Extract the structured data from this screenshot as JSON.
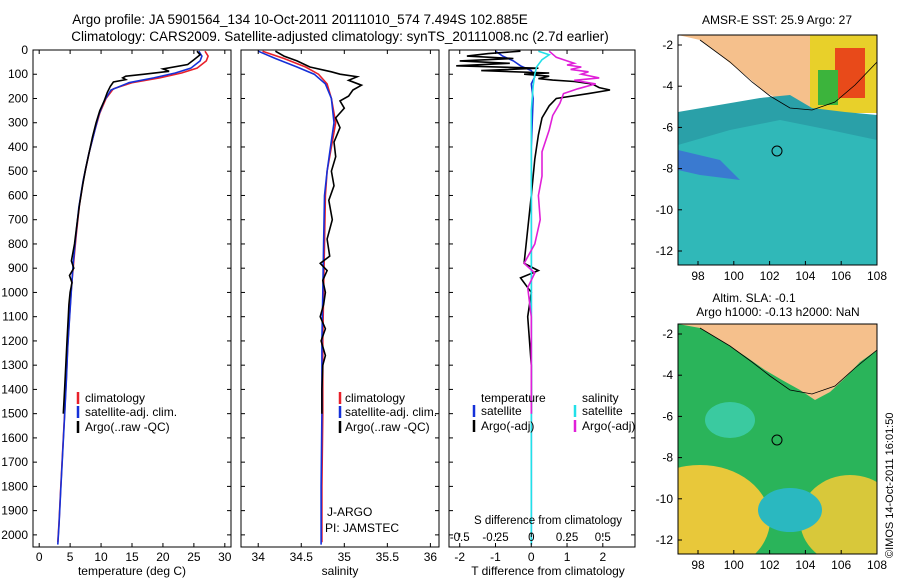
{
  "title_line1": "Argo profile: JA 5901564_134 10-Oct-2011 20111010_574 7.494S 102.885E",
  "title_line2": "Climatology: CARS2009. Satellite-adjusted climatology: synTS_20111008.nc (2.7d earlier)",
  "depth_ticks": [
    0,
    100,
    200,
    300,
    400,
    500,
    600,
    700,
    800,
    900,
    1000,
    1100,
    1200,
    1300,
    1400,
    1500,
    1600,
    1700,
    1800,
    1900,
    2000
  ],
  "colors": {
    "climatology": "#e8202a",
    "satellite": "#1530d8",
    "argo": "#000000",
    "cyan": "#22e0e8",
    "magenta": "#e020d8",
    "land": "#f5c08c",
    "ocean": "#2e8a5a"
  },
  "chart_data": [
    {
      "type": "line",
      "id": "temperature",
      "xlabel": "temperature (deg C)",
      "xlim": [
        -1,
        31
      ],
      "ylim": [
        2050,
        0
      ],
      "xticks": [
        0,
        5,
        10,
        15,
        20,
        25,
        30
      ],
      "xticklabels": [
        "0",
        "5",
        "10",
        "15",
        "20",
        "25",
        "30"
      ],
      "legend": [
        "climatology",
        "satellite-adj. clim.",
        "Argo(..raw -QC)"
      ],
      "series": [
        {
          "name": "climatology",
          "color": "red",
          "points": [
            [
              26.8,
              5
            ],
            [
              27.3,
              25
            ],
            [
              27.0,
              45
            ],
            [
              25.5,
              75
            ],
            [
              23,
              95
            ],
            [
              19.5,
              115
            ],
            [
              15,
              135
            ],
            [
              12,
              160
            ],
            [
              10.8,
              200
            ],
            [
              9.8,
              260
            ],
            [
              9,
              330
            ],
            [
              8.1,
              420
            ],
            [
              7.2,
              530
            ],
            [
              6.5,
              640
            ],
            [
              6,
              760
            ],
            [
              5.6,
              870
            ],
            [
              5.2,
              980
            ],
            [
              4.9,
              1100
            ],
            [
              4.6,
              1220
            ],
            [
              4.4,
              1350
            ],
            [
              4.1,
              1500
            ],
            [
              3.8,
              1650
            ],
            [
              3.5,
              1800
            ],
            [
              3.2,
              1950
            ],
            [
              3,
              2030
            ]
          ]
        },
        {
          "name": "satellite-adj. clim.",
          "color": "blue",
          "points": [
            [
              25.8,
              5
            ],
            [
              26.3,
              25
            ],
            [
              26.0,
              45
            ],
            [
              24.5,
              75
            ],
            [
              22,
              95
            ],
            [
              18.5,
              115
            ],
            [
              14.5,
              135
            ],
            [
              11.6,
              165
            ],
            [
              10.5,
              210
            ],
            [
              9.6,
              270
            ],
            [
              8.9,
              340
            ],
            [
              8.0,
              430
            ],
            [
              7.1,
              540
            ],
            [
              6.4,
              650
            ],
            [
              5.9,
              770
            ],
            [
              5.5,
              880
            ],
            [
              5.2,
              990
            ],
            [
              4.9,
              1110
            ],
            [
              4.6,
              1230
            ],
            [
              4.4,
              1360
            ],
            [
              4.1,
              1510
            ],
            [
              3.8,
              1660
            ],
            [
              3.5,
              1810
            ],
            [
              3.2,
              1960
            ],
            [
              3,
              2040
            ]
          ]
        },
        {
          "name": "Argo(..raw -QC)",
          "color": "black",
          "points": [
            [
              25.5,
              5
            ],
            [
              26,
              20
            ],
            [
              25,
              40
            ],
            [
              24,
              60
            ],
            [
              20,
              78
            ],
            [
              21,
              88
            ],
            [
              17,
              100
            ],
            [
              14,
              108
            ],
            [
              13.5,
              115
            ],
            [
              14,
              122
            ],
            [
              12,
              132
            ],
            [
              11.5,
              150
            ],
            [
              11,
              175
            ],
            [
              10.5,
              210
            ],
            [
              9.8,
              250
            ],
            [
              9.2,
              300
            ],
            [
              8.6,
              360
            ],
            [
              8.1,
              420
            ],
            [
              7.5,
              490
            ],
            [
              7,
              560
            ],
            [
              6.5,
              640
            ],
            [
              6.1,
              720
            ],
            [
              5.7,
              800
            ],
            [
              5.2,
              870
            ],
            [
              5.6,
              900
            ],
            [
              4.9,
              930
            ],
            [
              5.3,
              960
            ],
            [
              5.0,
              1000
            ],
            [
              4.8,
              1050
            ],
            [
              4.7,
              1100
            ],
            [
              4.5,
              1200
            ],
            [
              4.3,
              1300
            ],
            [
              4.1,
              1400
            ],
            [
              3.9,
              1500
            ]
          ]
        }
      ]
    },
    {
      "type": "line",
      "id": "salinity",
      "xlabel": "salinity",
      "xlim": [
        33.8,
        36.1
      ],
      "ylim": [
        2050,
        0
      ],
      "xticks": [
        34,
        34.5,
        35,
        35.5,
        36
      ],
      "xticklabels": [
        "34",
        "34.5",
        "35",
        "35.5",
        "36"
      ],
      "legend": [
        "climatology",
        "satellite-adj. clim.",
        "Argo(..raw -QC)"
      ],
      "annotation_line1": "J-ARGO",
      "annotation_line2": "PI: JAMSTEC",
      "series": [
        {
          "name": "climatology",
          "color": "red",
          "points": [
            [
              34.05,
              5
            ],
            [
              34.3,
              35
            ],
            [
              34.55,
              70
            ],
            [
              34.7,
              100
            ],
            [
              34.8,
              140
            ],
            [
              34.85,
              200
            ],
            [
              34.9,
              300
            ],
            [
              34.85,
              400
            ],
            [
              34.8,
              500
            ],
            [
              34.78,
              600
            ],
            [
              34.77,
              800
            ],
            [
              34.76,
              1000
            ],
            [
              34.75,
              1200
            ],
            [
              34.75,
              1500
            ],
            [
              34.74,
              1800
            ],
            [
              34.74,
              2030
            ]
          ]
        },
        {
          "name": "satellite-adj. clim.",
          "color": "blue",
          "points": [
            [
              34.0,
              5
            ],
            [
              34.2,
              35
            ],
            [
              34.45,
              70
            ],
            [
              34.65,
              100
            ],
            [
              34.78,
              140
            ],
            [
              34.85,
              200
            ],
            [
              34.88,
              300
            ],
            [
              34.84,
              400
            ],
            [
              34.8,
              500
            ],
            [
              34.77,
              600
            ],
            [
              34.76,
              800
            ],
            [
              34.75,
              1000
            ],
            [
              34.74,
              1200
            ],
            [
              34.74,
              1500
            ],
            [
              34.73,
              1800
            ],
            [
              34.73,
              2040
            ]
          ]
        },
        {
          "name": "Argo(..raw -QC)",
          "color": "black",
          "points": [
            [
              34.2,
              5
            ],
            [
              34.3,
              25
            ],
            [
              34.45,
              45
            ],
            [
              34.6,
              70
            ],
            [
              34.85,
              90
            ],
            [
              34.95,
              100
            ],
            [
              35.15,
              110
            ],
            [
              35.05,
              125
            ],
            [
              35.2,
              145
            ],
            [
              35.1,
              165
            ],
            [
              35.05,
              190
            ],
            [
              34.95,
              210
            ],
            [
              35.0,
              240
            ],
            [
              34.9,
              280
            ],
            [
              34.95,
              320
            ],
            [
              34.88,
              380
            ],
            [
              34.9,
              440
            ],
            [
              34.85,
              500
            ],
            [
              34.88,
              560
            ],
            [
              34.82,
              620
            ],
            [
              34.86,
              700
            ],
            [
              34.8,
              780
            ],
            [
              34.83,
              850
            ],
            [
              34.72,
              880
            ],
            [
              34.8,
              910
            ],
            [
              34.75,
              950
            ],
            [
              34.78,
              1000
            ],
            [
              34.76,
              1050
            ],
            [
              34.72,
              1100
            ],
            [
              34.78,
              1150
            ],
            [
              34.73,
              1200
            ],
            [
              34.78,
              1260
            ],
            [
              34.75,
              1300
            ],
            [
              34.74,
              1400
            ],
            [
              34.74,
              1500
            ]
          ]
        }
      ]
    },
    {
      "type": "line",
      "id": "difference",
      "xlabel_top": "S difference from climatology",
      "xlabel": "T difference from climatology",
      "xlim": [
        -2.3,
        2.9
      ],
      "ylim": [
        2050,
        0
      ],
      "xticks": [
        -2,
        -1,
        0,
        1,
        2
      ],
      "xticklabels": [
        "-2",
        "-1",
        "0",
        "1",
        "2"
      ],
      "sticks": [
        -0.5,
        -0.25,
        0,
        0.25,
        0.5
      ],
      "sticklabels": [
        "-0.5",
        "-0.25",
        "0",
        "0.25",
        "0.5"
      ],
      "legend_temperature_title": "temperature",
      "legend_salinity_title": "salinity",
      "legend": [
        "satellite",
        "Argo(-adj)",
        "satellite",
        "Argo(-adj)"
      ],
      "series": [
        {
          "name": "T satellite",
          "color": "blue",
          "points": [
            [
              -1,
              5
            ],
            [
              -0.8,
              25
            ],
            [
              -0.5,
              45
            ],
            [
              -0.3,
              65
            ],
            [
              0,
              85
            ],
            [
              0.1,
              110
            ],
            [
              0,
              140
            ],
            [
              0.05,
              200
            ],
            [
              0,
              400
            ],
            [
              0,
              1000
            ],
            [
              0,
              2040
            ]
          ]
        },
        {
          "name": "T Argo(-adj)",
          "color": "black",
          "points": [
            [
              -0.3,
              5
            ],
            [
              -1.2,
              15
            ],
            [
              -1.8,
              25
            ],
            [
              -0.5,
              35
            ],
            [
              -2.0,
              45
            ],
            [
              -0.6,
              55
            ],
            [
              -2.1,
              65
            ],
            [
              0.2,
              75
            ],
            [
              -1.4,
              85
            ],
            [
              0.5,
              95
            ],
            [
              -0.2,
              100
            ],
            [
              0.5,
              108
            ],
            [
              0.2,
              118
            ],
            [
              0.6,
              124
            ],
            [
              1.2,
              130
            ],
            [
              1.7,
              140
            ],
            [
              1.9,
              155
            ],
            [
              2.2,
              165
            ],
            [
              1.6,
              180
            ],
            [
              0.7,
              200
            ],
            [
              0.5,
              230
            ],
            [
              0.3,
              280
            ],
            [
              0.2,
              350
            ],
            [
              0.1,
              450
            ],
            [
              0,
              600
            ],
            [
              -0.2,
              880
            ],
            [
              0.2,
              910
            ],
            [
              -0.3,
              940
            ],
            [
              0,
              1000
            ],
            [
              -0.1,
              1100
            ],
            [
              0,
              1300
            ],
            [
              0,
              1500
            ]
          ]
        },
        {
          "name": "S satellite",
          "color": "cyan",
          "points": [
            [
              0.2,
              5
            ],
            [
              0.5,
              20
            ],
            [
              0.3,
              40
            ],
            [
              0.15,
              70
            ],
            [
              0.1,
              100
            ],
            [
              0.05,
              150
            ],
            [
              0,
              250
            ],
            [
              0,
              600
            ],
            [
              0,
              1000
            ],
            [
              0,
              2040
            ]
          ]
        },
        {
          "name": "S Argo(-adj)",
          "color": "magenta",
          "points": [
            [
              0.5,
              5
            ],
            [
              0.7,
              30
            ],
            [
              1.0,
              45
            ],
            [
              1.2,
              55
            ],
            [
              1.0,
              62
            ],
            [
              1.4,
              70
            ],
            [
              1.1,
              80
            ],
            [
              1.6,
              90
            ],
            [
              1.4,
              100
            ],
            [
              1.9,
              115
            ],
            [
              1.2,
              125
            ],
            [
              1.8,
              140
            ],
            [
              1.3,
              160
            ],
            [
              0.9,
              180
            ],
            [
              0.8,
              220
            ],
            [
              0.6,
              270
            ],
            [
              0.5,
              330
            ],
            [
              0.3,
              420
            ],
            [
              0.3,
              520
            ],
            [
              0.2,
              600
            ],
            [
              0.25,
              700
            ],
            [
              0.1,
              800
            ],
            [
              -0.2,
              880
            ],
            [
              0.1,
              920
            ],
            [
              -0.1,
              980
            ],
            [
              0,
              1100
            ],
            [
              0,
              1500
            ]
          ]
        }
      ]
    }
  ],
  "map1": {
    "title": "AMSR-E SST: 25.9 Argo: 27",
    "xticks": [
      "98",
      "100",
      "102",
      "104",
      "106",
      "108"
    ],
    "yticks": [
      "-2",
      "-4",
      "-6",
      "-8",
      "-10",
      "-12"
    ]
  },
  "map2": {
    "title_line1": "Altim. SLA: -0.1",
    "title_line2": "Argo h1000: -0.13 h2000: NaN",
    "xticks": [
      "98",
      "100",
      "102",
      "104",
      "106",
      "108"
    ],
    "yticks": [
      "-2",
      "-4",
      "-6",
      "-8",
      "-10",
      "-12"
    ]
  },
  "credit": "©IMOS 14-Oct-2011 16:01:50"
}
